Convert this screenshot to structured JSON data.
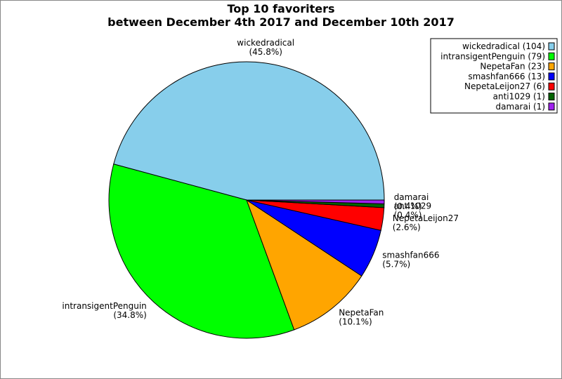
{
  "chart_data": {
    "type": "pie",
    "title": "Top 10 favoriters",
    "subtitle": "between December 4th 2017 and December 10th 2017",
    "slices": [
      {
        "name": "wickedradical",
        "value": 104,
        "percent": "(45.8%)",
        "legend": "wickedradical (104)",
        "color": "#87ceeb"
      },
      {
        "name": "intransigentPenguin",
        "value": 79,
        "percent": "(34.8%)",
        "legend": "intransigentPenguin (79)",
        "color": "#00ff00"
      },
      {
        "name": "NepetaFan",
        "value": 23,
        "percent": "(10.1%)",
        "legend": "NepetaFan (23)",
        "color": "#ffa500"
      },
      {
        "name": "smashfan666",
        "value": 13,
        "percent": "(5.7%)",
        "legend": "smashfan666 (13)",
        "color": "#0000ff"
      },
      {
        "name": "NepetaLeijon27",
        "value": 6,
        "percent": "(2.6%)",
        "legend": "NepetaLeijon27 (6)",
        "color": "#ff0000"
      },
      {
        "name": "anti1029",
        "value": 1,
        "percent": "(0.4%)",
        "legend": "anti1029 (1)",
        "color": "#006400"
      },
      {
        "name": "damarai",
        "value": 1,
        "percent": "(0.4%)",
        "legend": "damarai (1)",
        "color": "#a020f0"
      }
    ],
    "legend_position": "top-right"
  }
}
